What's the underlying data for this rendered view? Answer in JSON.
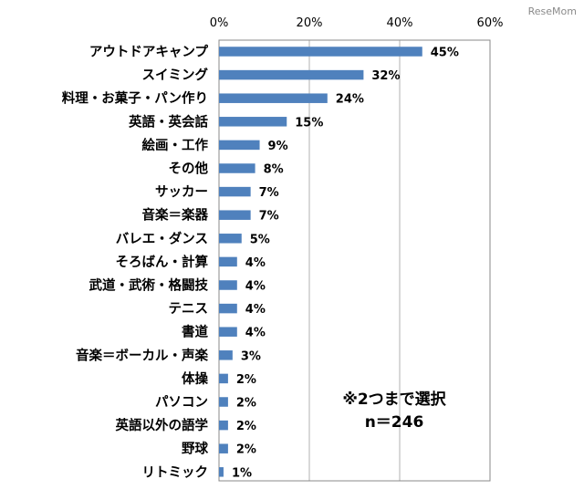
{
  "watermark": "ReseMom",
  "note": {
    "line1": "※2つまで選択",
    "line2": "n＝246"
  },
  "colors": {
    "bar": "#4f81bd",
    "grid": "#b0b0b0",
    "frame": "#888888"
  },
  "chart_data": {
    "type": "bar",
    "orientation": "horizontal",
    "title": "",
    "xlabel": "",
    "ylabel": "",
    "xlim": [
      0,
      60
    ],
    "x_ticks": [
      "0%",
      "20%",
      "40%",
      "60%"
    ],
    "x_tick_values": [
      0,
      20,
      40,
      60
    ],
    "grid": true,
    "categories": [
      "アウトドアキャンプ",
      "スイミング",
      "料理・お菓子・パン作り",
      "英語・英会話",
      "絵画・工作",
      "その他",
      "サッカー",
      "音楽＝楽器",
      "バレエ・ダンス",
      "そろばん・計算",
      "武道・武術・格闘技",
      "テニス",
      "書道",
      "音楽＝ボーカル・声楽",
      "体操",
      "パソコン",
      "英語以外の語学",
      "野球",
      "リトミック"
    ],
    "values": [
      45,
      32,
      24,
      15,
      9,
      8,
      7,
      7,
      5,
      4,
      4,
      4,
      4,
      3,
      2,
      2,
      2,
      2,
      1
    ],
    "value_labels": [
      "45%",
      "32%",
      "24%",
      "15%",
      "9%",
      "8%",
      "7%",
      "7%",
      "5%",
      "4%",
      "4%",
      "4%",
      "4%",
      "3%",
      "2%",
      "2%",
      "2%",
      "2%",
      "1%"
    ]
  }
}
